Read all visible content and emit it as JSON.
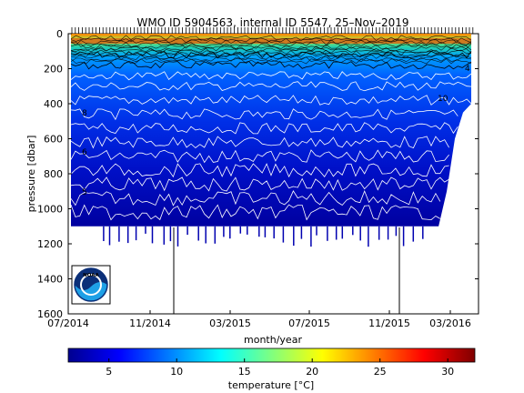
{
  "chart_data": {
    "type": "heatmap",
    "title": "WMO ID 5904563, internal ID 5547, 25–Nov–2019",
    "xlabel": "month/year",
    "ylabel": "pressure [dbar]",
    "x_ticks": [
      "07/2014",
      "11/2014",
      "03/2015",
      "07/2015",
      "11/2015",
      "03/2016"
    ],
    "y_ticks": [
      "0",
      "200",
      "400",
      "600",
      "800",
      "1000",
      "1200",
      "1400",
      "1600"
    ],
    "ylim": [
      1600,
      0
    ],
    "grid": false,
    "colorbar": {
      "label": "temperature [°C]",
      "ticks": [
        "5",
        "10",
        "15",
        "20",
        "25",
        "30"
      ],
      "range": [
        2,
        32
      ]
    },
    "contour_labels": [
      "8",
      "6",
      "5",
      "4",
      "10"
    ],
    "logo_label": "NOAA",
    "data_mask_depth_dbar": [
      1100,
      1100,
      1100,
      1100,
      1100,
      1100,
      1100,
      1100,
      1100,
      1100,
      1100,
      1100,
      1100,
      1100,
      1100,
      1100,
      1100,
      1100,
      1100,
      1100,
      1100,
      1100,
      1100,
      1100,
      1100,
      1100,
      1100,
      1100,
      1100,
      1100,
      1100,
      1100,
      1100,
      1100,
      1100,
      1100,
      1100,
      1100,
      1100,
      1100,
      1100,
      1100,
      1100,
      1100,
      1100,
      1100,
      900,
      600,
      450,
      400
    ]
  }
}
